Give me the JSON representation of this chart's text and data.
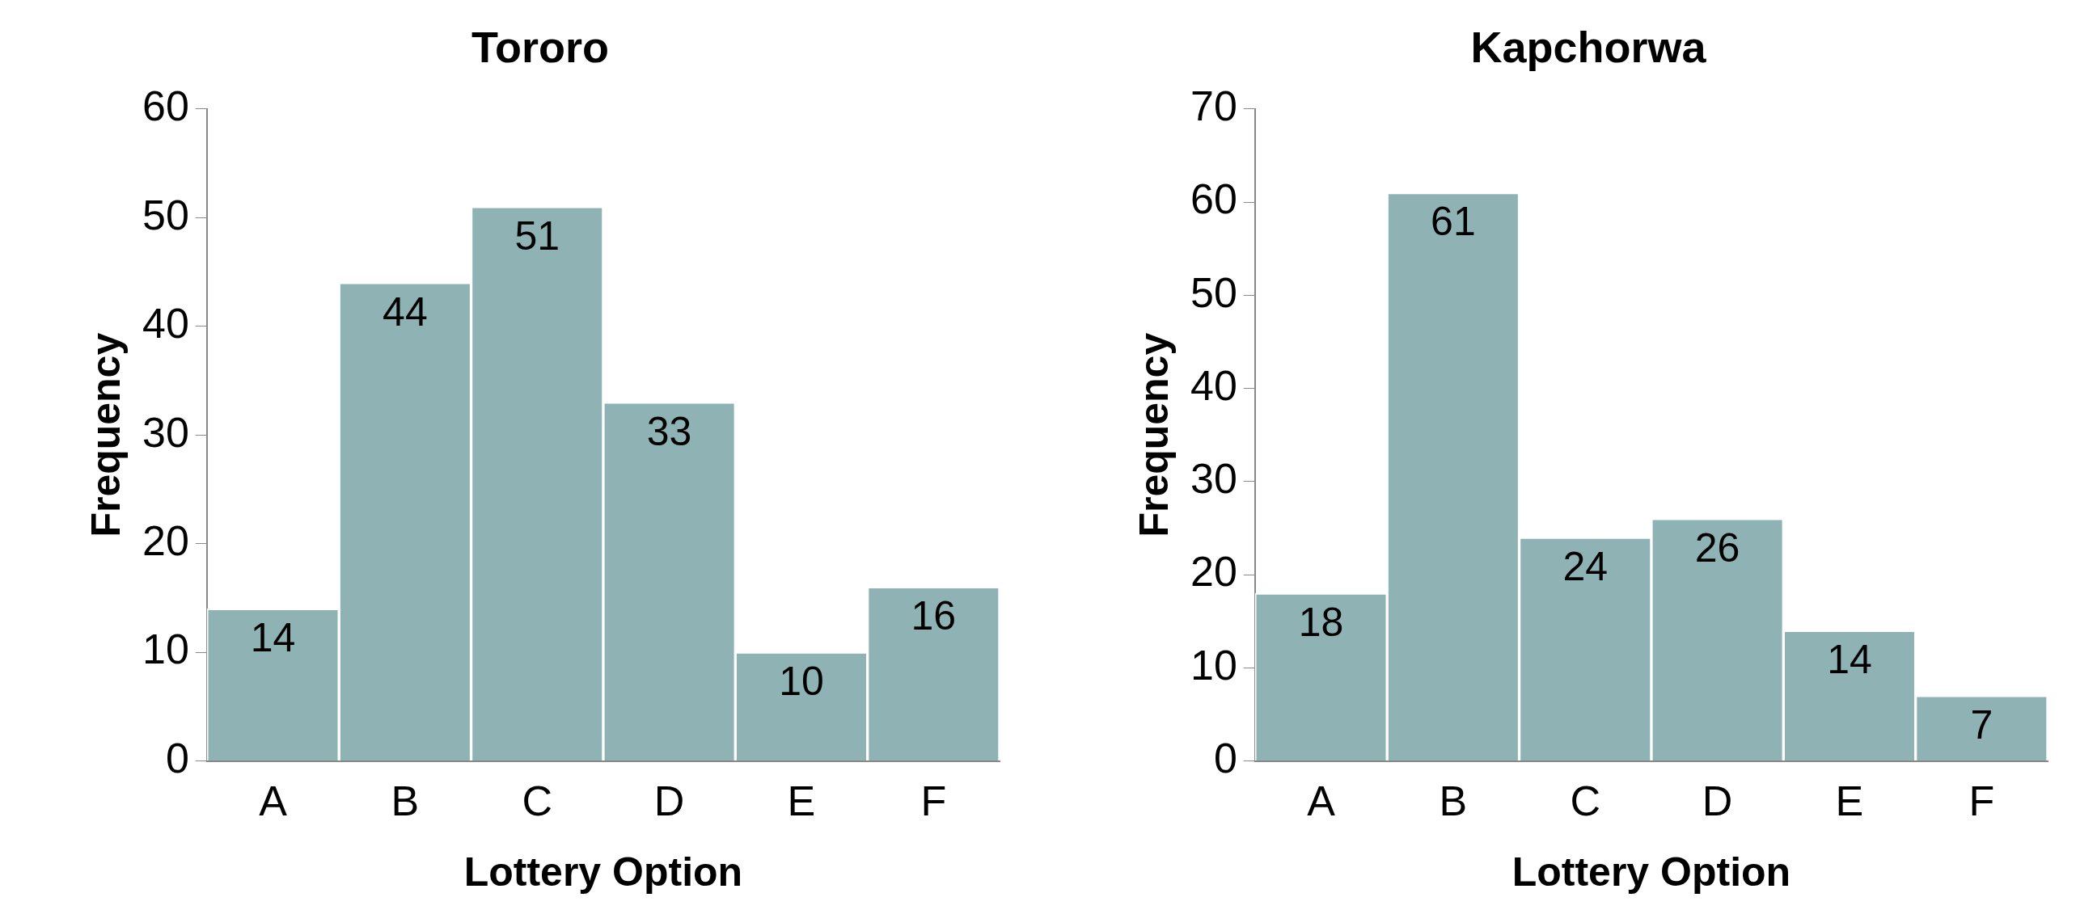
{
  "chart_data": [
    {
      "type": "bar",
      "title": "Tororo",
      "xlabel": "Lottery Option",
      "ylabel": "Frequency",
      "categories": [
        "A",
        "B",
        "C",
        "D",
        "E",
        "F"
      ],
      "values": [
        14,
        44,
        51,
        33,
        10,
        16
      ],
      "color": "#8fb2b5",
      "ylim": [
        0,
        60
      ],
      "yticks": [
        0,
        10,
        20,
        30,
        40,
        50,
        60
      ],
      "grid": false,
      "legend": false,
      "data_labels": true
    },
    {
      "type": "bar",
      "title": "Kapchorwa",
      "xlabel": "Lottery Option",
      "ylabel": "Frequency",
      "categories": [
        "A",
        "B",
        "C",
        "D",
        "E",
        "F"
      ],
      "values": [
        18,
        61,
        24,
        26,
        14,
        7
      ],
      "color": "#8fb2b5",
      "ylim": [
        0,
        70
      ],
      "yticks": [
        0,
        10,
        20,
        30,
        40,
        50,
        60,
        70
      ],
      "grid": false,
      "legend": false,
      "data_labels": true
    }
  ]
}
